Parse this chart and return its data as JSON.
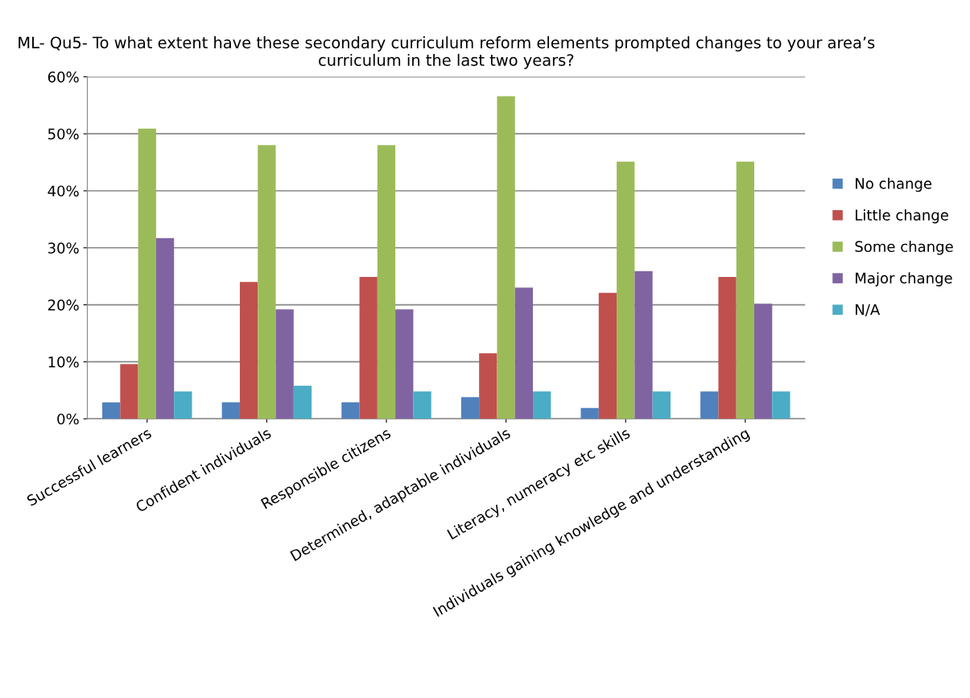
{
  "chart_data": {
    "type": "bar",
    "title": "ML- Qu5- To what extent have these secondary curriculum reform elements prompted changes to your area’s curriculum in the last two years?",
    "categories": [
      "Successful learners",
      "Confident individuals",
      "Responsible citizens",
      "Determined, adaptable individuals",
      "Literacy, numeracy etc skills",
      "Individuals gaining knowledge and understanding"
    ],
    "series": [
      {
        "name": "No change",
        "color": "#4f81bd",
        "values": [
          2.9,
          2.9,
          2.9,
          3.8,
          1.9,
          4.8
        ]
      },
      {
        "name": "Little change",
        "color": "#c0504d",
        "values": [
          9.6,
          24.0,
          24.9,
          11.5,
          22.1,
          24.9
        ]
      },
      {
        "name": "Some change",
        "color": "#9bbb59",
        "values": [
          50.9,
          48.0,
          48.0,
          56.6,
          45.1,
          45.1
        ]
      },
      {
        "name": "Major change",
        "color": "#8064a2",
        "values": [
          31.7,
          19.2,
          19.2,
          23.0,
          25.9,
          20.2
        ]
      },
      {
        "name": "N/A",
        "color": "#4bacc6",
        "values": [
          4.8,
          5.8,
          4.8,
          4.8,
          4.8,
          4.8
        ]
      }
    ],
    "ylim": [
      0,
      60
    ],
    "yticks": [
      {
        "value": 0,
        "label": "0%"
      },
      {
        "value": 10,
        "label": "10%"
      },
      {
        "value": 20,
        "label": "20%"
      },
      {
        "value": 30,
        "label": "30%"
      },
      {
        "value": 40,
        "label": "40%"
      },
      {
        "value": 50,
        "label": "50%"
      },
      {
        "value": 60,
        "label": "60%"
      }
    ],
    "grid": "y",
    "legend": "right"
  }
}
